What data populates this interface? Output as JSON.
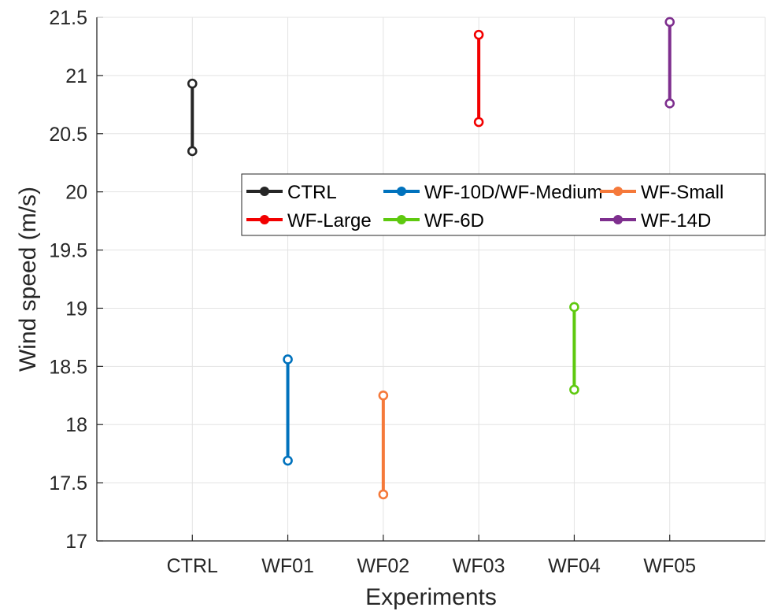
{
  "chart_data": {
    "type": "range",
    "title": "",
    "xlabel": "Experiments",
    "ylabel": "Wind speed (m/s)",
    "categories": [
      "CTRL",
      "WF01",
      "WF02",
      "WF03",
      "WF04",
      "WF05"
    ],
    "ylim": [
      17,
      21.5
    ],
    "yticks": [
      "17",
      "17.5",
      "18",
      "18.5",
      "19",
      "19.5",
      "20",
      "20.5",
      "21",
      "21.5"
    ],
    "grid": true,
    "legend_position": "center-right",
    "series": [
      {
        "name": "CTRL",
        "category": "CTRL",
        "low": 20.35,
        "high": 20.93,
        "color": "#262626"
      },
      {
        "name": "WF-10D/WF-Medium",
        "category": "WF01",
        "low": 17.69,
        "high": 18.56,
        "color": "#0072BD"
      },
      {
        "name": "WF-Small",
        "category": "WF02",
        "low": 17.4,
        "high": 18.25,
        "color": "#F5793A"
      },
      {
        "name": "WF-Large",
        "category": "WF03",
        "low": 20.6,
        "high": 21.35,
        "color": "#F20000"
      },
      {
        "name": "WF-6D",
        "category": "WF04",
        "low": 18.3,
        "high": 19.01,
        "color": "#5EC90F"
      },
      {
        "name": "WF-14D",
        "category": "WF05",
        "low": 20.76,
        "high": 21.46,
        "color": "#7E2F8E"
      }
    ],
    "legend_order": [
      "CTRL",
      "WF-10D/WF-Medium",
      "WF-Small",
      "WF-Large",
      "WF-6D",
      "WF-14D"
    ]
  }
}
